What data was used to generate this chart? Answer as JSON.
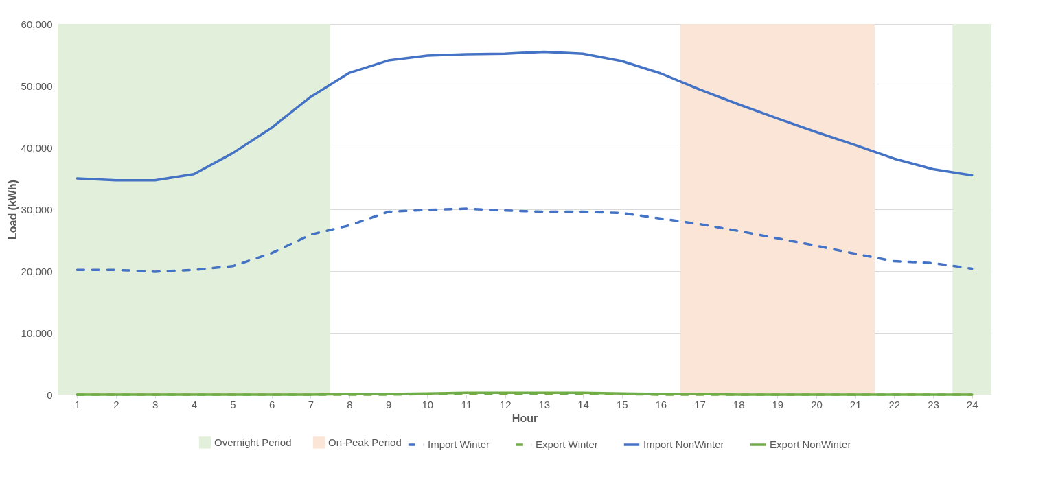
{
  "chart_data": {
    "type": "line",
    "xlabel": "Hour",
    "ylabel": "Load (kWh)",
    "x": [
      1,
      2,
      3,
      4,
      5,
      6,
      7,
      8,
      9,
      10,
      11,
      12,
      13,
      14,
      15,
      16,
      17,
      18,
      19,
      20,
      21,
      22,
      23,
      24
    ],
    "xlim": [
      0.5,
      24.5
    ],
    "xticks": [
      1,
      2,
      3,
      4,
      5,
      6,
      7,
      8,
      9,
      10,
      11,
      12,
      13,
      14,
      15,
      16,
      17,
      18,
      19,
      20,
      21,
      22,
      23,
      24
    ],
    "ylim": [
      0,
      60000
    ],
    "yticks": [
      0,
      {
        "value": 10000,
        "label": "10,000"
      },
      {
        "value": 20000,
        "label": "20,000"
      },
      {
        "value": 30000,
        "label": "30,000"
      },
      {
        "value": 40000,
        "label": "40,000"
      },
      {
        "value": 50000,
        "label": "50,000"
      },
      {
        "value": 60000,
        "label": "60,000"
      }
    ],
    "grid": "y",
    "legend": "bottom",
    "marker": "none",
    "bands": [
      {
        "axis": "x",
        "from": 0.5,
        "to": 7.5,
        "label": "Overnight Period",
        "color": "#e2efda"
      },
      {
        "axis": "x",
        "from": 16.5,
        "to": 21.5,
        "label": "On-Peak Period",
        "color": "#fbe5d6"
      },
      {
        "axis": "x",
        "from": 23.5,
        "to": 24.5,
        "color": "#e2efda"
      }
    ],
    "series": [
      {
        "name": "Import Winter",
        "color": "#4472c4",
        "line_style": "dashed",
        "values": [
          20200,
          20200,
          19900,
          20200,
          20800,
          22900,
          25900,
          27400,
          29600,
          29900,
          30100,
          29800,
          29600,
          29600,
          29400,
          28500,
          27600,
          26500,
          25300,
          24100,
          22800,
          21600,
          21300,
          20400
        ]
      },
      {
        "name": "Export Winter",
        "color": "#70ad47",
        "line_style": "dashed",
        "values": [
          0,
          0,
          0,
          0,
          0,
          0,
          0,
          0,
          0,
          100,
          200,
          200,
          200,
          200,
          100,
          0,
          0,
          0,
          0,
          0,
          0,
          0,
          0,
          0
        ]
      },
      {
        "name": "Import NonWinter",
        "color": "#4472c4",
        "line_style": "solid",
        "values": [
          35000,
          34700,
          34700,
          35700,
          39100,
          43200,
          48200,
          52100,
          54100,
          54900,
          55100,
          55200,
          55500,
          55200,
          54000,
          52000,
          49400,
          47000,
          44700,
          42500,
          40400,
          38200,
          36500,
          35500
        ]
      },
      {
        "name": "Export NonWinter",
        "color": "#70ad47",
        "line_style": "solid",
        "values": [
          0,
          0,
          0,
          0,
          0,
          0,
          0,
          100,
          100,
          200,
          300,
          300,
          300,
          300,
          200,
          100,
          100,
          0,
          0,
          0,
          0,
          0,
          0,
          0
        ]
      }
    ]
  }
}
